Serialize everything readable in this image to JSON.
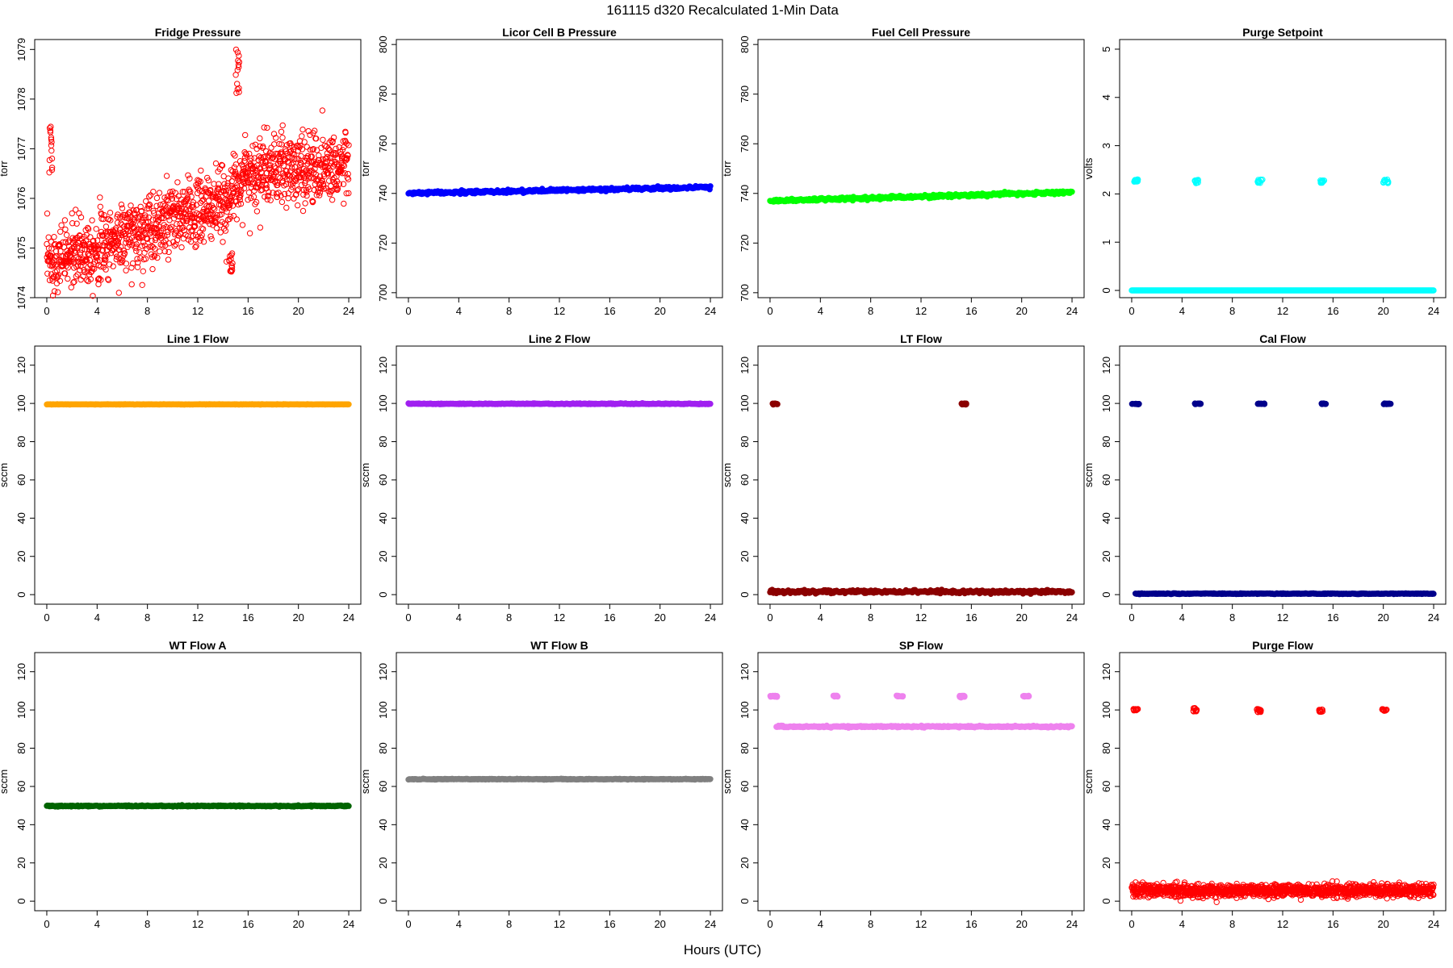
{
  "figure": {
    "title": "161115   d320   Recalculated 1-Min Data",
    "xlabel": "Hours (UTC)"
  },
  "chart_data": [
    {
      "type": "scatter",
      "title": "Fridge Pressure",
      "ylabel": "torr",
      "color": "#ff0000",
      "marker": "open",
      "xlim": [
        0,
        24
      ],
      "xticks": [
        0,
        4,
        8,
        12,
        16,
        20,
        24
      ],
      "ylim": [
        1074,
        1079.2
      ],
      "yticks": [
        1074,
        1075,
        1076,
        1077,
        1078,
        1079
      ],
      "pattern": "fridge",
      "segments": [
        {
          "x": [
            0,
            14.3
          ],
          "y": [
            1074.7,
            1075.9
          ],
          "noise": 0.35
        },
        {
          "x": [
            14.3,
            15.6
          ],
          "y": [
            1076.0,
            1076.4
          ],
          "noise": 0.3
        },
        {
          "x": [
            15.6,
            24
          ],
          "y": [
            1076.5,
            1076.7
          ],
          "noise": 0.35
        }
      ],
      "clusters": [
        {
          "x": [
            0.2,
            0.5
          ],
          "y": [
            1076.5,
            1077.6
          ]
        },
        {
          "x": [
            14.4,
            14.8
          ],
          "y": [
            1074.5,
            1074.9
          ]
        },
        {
          "x": [
            15.0,
            15.3
          ],
          "y": [
            1078.1,
            1079.1
          ]
        }
      ]
    },
    {
      "type": "scatter",
      "title": "Licor Cell B Pressure",
      "ylabel": "torr",
      "color": "#0000ff",
      "marker": "filled",
      "xlim": [
        0,
        24
      ],
      "xticks": [
        0,
        4,
        8,
        12,
        16,
        20,
        24
      ],
      "ylim": [
        698,
        802
      ],
      "yticks": [
        700,
        720,
        740,
        760,
        780,
        800
      ],
      "pattern": "line",
      "segments": [
        {
          "x": [
            0,
            24
          ],
          "y": [
            740.0,
            742.5
          ],
          "noise": 0.3
        }
      ],
      "clusters": []
    },
    {
      "type": "scatter",
      "title": "Fuel Cell Pressure",
      "ylabel": "torr",
      "color": "#00ff00",
      "marker": "filled",
      "xlim": [
        0,
        24
      ],
      "xticks": [
        0,
        4,
        8,
        12,
        16,
        20,
        24
      ],
      "ylim": [
        698,
        802
      ],
      "yticks": [
        700,
        720,
        740,
        760,
        780,
        800
      ],
      "pattern": "line",
      "segments": [
        {
          "x": [
            0,
            24
          ],
          "y": [
            737.0,
            740.5
          ],
          "noise": 0.3
        }
      ],
      "clusters": []
    },
    {
      "type": "scatter",
      "title": "Purge Setpoint",
      "ylabel": "volts",
      "color": "#00ffff",
      "marker": "open",
      "xlim": [
        0,
        24
      ],
      "xticks": [
        0,
        4,
        8,
        12,
        16,
        20,
        24
      ],
      "ylim": [
        -0.15,
        5.2
      ],
      "yticks": [
        0,
        1,
        2,
        3,
        4,
        5
      ],
      "pattern": "line",
      "segments": [
        {
          "x": [
            0,
            24
          ],
          "y": [
            0,
            0
          ],
          "noise": 0
        }
      ],
      "clusters": [
        {
          "x": [
            0.2,
            0.5
          ],
          "y": [
            2.25,
            2.3
          ]
        },
        {
          "x": [
            5.0,
            5.3
          ],
          "y": [
            2.22,
            2.3
          ]
        },
        {
          "x": [
            10.0,
            10.4
          ],
          "y": [
            2.22,
            2.3
          ]
        },
        {
          "x": [
            15.0,
            15.3
          ],
          "y": [
            2.22,
            2.28
          ]
        },
        {
          "x": [
            20.0,
            20.4
          ],
          "y": [
            2.22,
            2.3
          ]
        }
      ]
    },
    {
      "type": "scatter",
      "title": "Line 1 Flow",
      "ylabel": "sccm",
      "color": "#ffa500",
      "marker": "filled",
      "xlim": [
        0,
        24
      ],
      "xticks": [
        0,
        4,
        8,
        12,
        16,
        20,
        24
      ],
      "ylim": [
        -5,
        130
      ],
      "yticks": [
        0,
        20,
        40,
        60,
        80,
        100,
        120
      ],
      "pattern": "line",
      "segments": [
        {
          "x": [
            0,
            24
          ],
          "y": [
            99.5,
            99.5
          ],
          "noise": 0.05
        }
      ],
      "clusters": []
    },
    {
      "type": "scatter",
      "title": "Line 2 Flow",
      "ylabel": "sccm",
      "color": "#a020f0",
      "marker": "filled",
      "xlim": [
        0,
        24
      ],
      "xticks": [
        0,
        4,
        8,
        12,
        16,
        20,
        24
      ],
      "ylim": [
        -5,
        130
      ],
      "yticks": [
        0,
        20,
        40,
        60,
        80,
        100,
        120
      ],
      "pattern": "line",
      "segments": [
        {
          "x": [
            0,
            24
          ],
          "y": [
            99.8,
            99.8
          ],
          "noise": 0.1
        }
      ],
      "clusters": []
    },
    {
      "type": "scatter",
      "title": "LT Flow",
      "ylabel": "sccm",
      "color": "#8b0000",
      "marker": "filled",
      "xlim": [
        0,
        24
      ],
      "xticks": [
        0,
        4,
        8,
        12,
        16,
        20,
        24
      ],
      "ylim": [
        -5,
        130
      ],
      "yticks": [
        0,
        20,
        40,
        60,
        80,
        100,
        120
      ],
      "pattern": "line",
      "segments": [
        {
          "x": [
            0,
            24
          ],
          "y": [
            1.5,
            1.5
          ],
          "noise": 0.4
        }
      ],
      "clusters": [
        {
          "x": [
            0.2,
            0.6
          ],
          "y": [
            99.4,
            100
          ]
        },
        {
          "x": [
            15.2,
            15.6
          ],
          "y": [
            99.4,
            100
          ]
        }
      ]
    },
    {
      "type": "scatter",
      "title": "Cal Flow",
      "ylabel": "sccm",
      "color": "#00008b",
      "marker": "filled",
      "xlim": [
        0,
        24
      ],
      "xticks": [
        0,
        4,
        8,
        12,
        16,
        20,
        24
      ],
      "ylim": [
        -5,
        130
      ],
      "yticks": [
        0,
        20,
        40,
        60,
        80,
        100,
        120
      ],
      "pattern": "line",
      "segments": [
        {
          "x": [
            0.3,
            24
          ],
          "y": [
            0.5,
            0.5
          ],
          "noise": 0.1
        }
      ],
      "clusters": [
        {
          "x": [
            0,
            0.6
          ],
          "y": [
            99.6,
            100
          ]
        },
        {
          "x": [
            5.0,
            5.5
          ],
          "y": [
            99.6,
            100
          ]
        },
        {
          "x": [
            10.0,
            10.6
          ],
          "y": [
            99.6,
            100
          ]
        },
        {
          "x": [
            15.0,
            15.5
          ],
          "y": [
            99.6,
            100
          ]
        },
        {
          "x": [
            20.0,
            20.6
          ],
          "y": [
            99.6,
            100
          ]
        }
      ]
    },
    {
      "type": "scatter",
      "title": "WT Flow A",
      "ylabel": "sccm",
      "color": "#006400",
      "marker": "filled",
      "xlim": [
        0,
        24
      ],
      "xticks": [
        0,
        4,
        8,
        12,
        16,
        20,
        24
      ],
      "ylim": [
        -5,
        130
      ],
      "yticks": [
        0,
        20,
        40,
        60,
        80,
        100,
        120
      ],
      "pattern": "line",
      "segments": [
        {
          "x": [
            0,
            24
          ],
          "y": [
            49.8,
            49.8
          ],
          "noise": 0.15
        }
      ],
      "clusters": []
    },
    {
      "type": "scatter",
      "title": "WT Flow B",
      "ylabel": "sccm",
      "color": "#808080",
      "marker": "filled",
      "xlim": [
        0,
        24
      ],
      "xticks": [
        0,
        4,
        8,
        12,
        16,
        20,
        24
      ],
      "ylim": [
        -5,
        130
      ],
      "yticks": [
        0,
        20,
        40,
        60,
        80,
        100,
        120
      ],
      "pattern": "line",
      "segments": [
        {
          "x": [
            0,
            24
          ],
          "y": [
            63.8,
            63.8
          ],
          "noise": 0.1
        }
      ],
      "clusters": []
    },
    {
      "type": "scatter",
      "title": "SP Flow",
      "ylabel": "sccm",
      "color": "#ee82ee",
      "marker": "filled",
      "xlim": [
        0,
        24
      ],
      "xticks": [
        0,
        4,
        8,
        12,
        16,
        20,
        24
      ],
      "ylim": [
        -5,
        130
      ],
      "yticks": [
        0,
        20,
        40,
        60,
        80,
        100,
        120
      ],
      "pattern": "line",
      "segments": [
        {
          "x": [
            0.5,
            24
          ],
          "y": [
            91.3,
            91.3
          ],
          "noise": 0.2
        }
      ],
      "clusters": [
        {
          "x": [
            0,
            0.6
          ],
          "y": [
            106.8,
            107.5
          ]
        },
        {
          "x": [
            5.0,
            5.5
          ],
          "y": [
            107,
            107.5
          ]
        },
        {
          "x": [
            10.0,
            10.6
          ],
          "y": [
            107,
            107.5
          ]
        },
        {
          "x": [
            15.0,
            15.5
          ],
          "y": [
            106.5,
            107.5
          ]
        },
        {
          "x": [
            20.0,
            20.6
          ],
          "y": [
            107,
            107.5
          ]
        }
      ]
    },
    {
      "type": "scatter",
      "title": "Purge Flow",
      "ylabel": "sccm",
      "color": "#ff0000",
      "marker": "open",
      "xlim": [
        0,
        24
      ],
      "xticks": [
        0,
        4,
        8,
        12,
        16,
        20,
        24
      ],
      "ylim": [
        -5,
        130
      ],
      "yticks": [
        0,
        20,
        40,
        60,
        80,
        100,
        120
      ],
      "pattern": "noisy",
      "segments": [
        {
          "x": [
            0,
            24
          ],
          "y": [
            5.5,
            5.5
          ],
          "noise": 1.6
        }
      ],
      "clusters": [
        {
          "x": [
            0.1,
            0.5
          ],
          "y": [
            99.5,
            100.5
          ]
        },
        {
          "x": [
            4.9,
            5.2
          ],
          "y": [
            99,
            101
          ]
        },
        {
          "x": [
            9.9,
            10.3
          ],
          "y": [
            98.8,
            100.5
          ]
        },
        {
          "x": [
            14.9,
            15.2
          ],
          "y": [
            99,
            100.2
          ]
        },
        {
          "x": [
            19.9,
            20.3
          ],
          "y": [
            99.5,
            100.5
          ]
        }
      ]
    }
  ]
}
